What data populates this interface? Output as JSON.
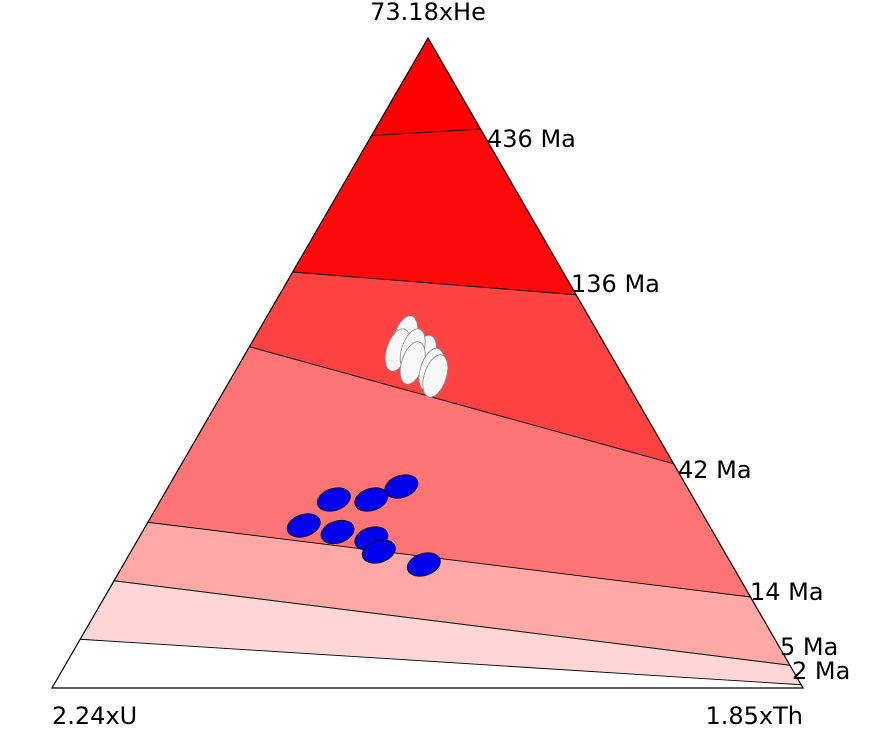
{
  "chart_data": {
    "type": "scatter",
    "subtype": "ternary",
    "apex_labels": {
      "top": "73.18xHe",
      "left": "2.24xU",
      "right": "1.85xTh"
    },
    "age_contours": [
      "2 Ma",
      "5 Ma",
      "14 Ma",
      "42 Ma",
      "136 Ma",
      "436 Ma"
    ],
    "band_colors": [
      "#ffffff",
      "#ffd6d6",
      "#ffa8a8",
      "#ff7474",
      "#ff4343",
      "#ff0a0a",
      "#ff0000"
    ],
    "series": [
      {
        "color": "#f8f8f8",
        "points": [
          {
            "he": 0.53,
            "u": 0.27,
            "th": 0.2
          },
          {
            "he": 0.54,
            "u": 0.26,
            "th": 0.2
          },
          {
            "he": 0.52,
            "u": 0.28,
            "th": 0.2
          },
          {
            "he": 0.51,
            "u": 0.25,
            "th": 0.24
          },
          {
            "he": 0.52,
            "u": 0.26,
            "th": 0.22
          },
          {
            "he": 0.5,
            "u": 0.27,
            "th": 0.23
          },
          {
            "he": 0.49,
            "u": 0.25,
            "th": 0.26
          },
          {
            "he": 0.48,
            "u": 0.25,
            "th": 0.27
          }
        ]
      },
      {
        "color": "#0000ee",
        "points": [
          {
            "he": 0.29,
            "u": 0.48,
            "th": 0.23
          },
          {
            "he": 0.29,
            "u": 0.43,
            "th": 0.28
          },
          {
            "he": 0.31,
            "u": 0.38,
            "th": 0.31
          },
          {
            "he": 0.25,
            "u": 0.54,
            "th": 0.21
          },
          {
            "he": 0.24,
            "u": 0.5,
            "th": 0.26
          },
          {
            "he": 0.23,
            "u": 0.46,
            "th": 0.31
          },
          {
            "he": 0.21,
            "u": 0.46,
            "th": 0.33
          },
          {
            "he": 0.19,
            "u": 0.41,
            "th": 0.4
          }
        ]
      }
    ]
  }
}
